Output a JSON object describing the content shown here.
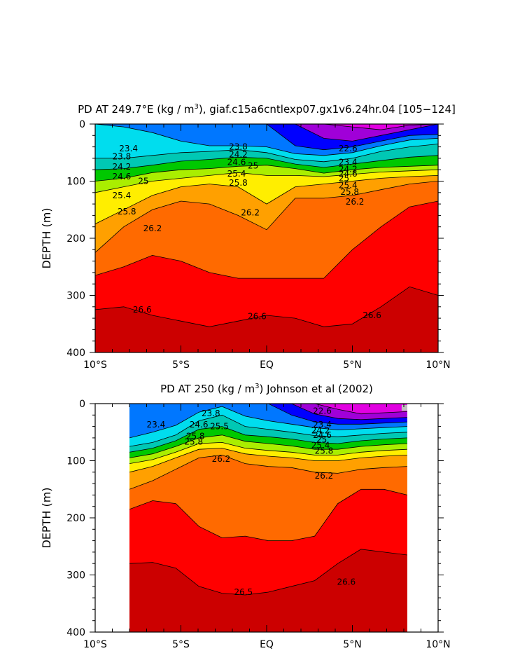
{
  "chart_data": [
    {
      "type": "contour",
      "title": "PD AT 249.7°E (kg / m³), giaf.c15a6cntlexp07.gx1v6.24hr.04 [105-124]",
      "title_parts": {
        "pre": "PD AT 249.7°E (kg / m",
        "sup": "3",
        "post": "), giaf.c15a6cntlexp07.gx1v6.24hr.04 [105−124]"
      },
      "ylabel": "DEPTH (m)",
      "xlabel": "",
      "xlim": [
        -10,
        10
      ],
      "ylim": [
        0,
        400
      ],
      "data_xlim": [
        -10,
        10
      ],
      "x_ticks": [
        -10,
        -5,
        0,
        5,
        10
      ],
      "x_tick_labels": [
        "10°S",
        "5°S",
        "EQ",
        "5°N",
        "10°N"
      ],
      "y_ticks": [
        0,
        100,
        200,
        300,
        400
      ],
      "y_tick_labels": [
        "0",
        "100",
        "200",
        "300",
        "400"
      ],
      "colors": {
        "l22": "#e100e1",
        "l22_6": "#a000d8",
        "l23": "#0000ff",
        "l23_4": "#0077ff",
        "l23_8": "#00ddee",
        "l24_2": "#00c8b4",
        "l24_6": "#00c800",
        "l25": "#aaee00",
        "l25_4": "#ffee00",
        "l25_8": "#ffa000",
        "l26_2": "#ff6a00",
        "l26_6": "#ff0000",
        "deep": "#cc0000",
        "surface": "#00f0ff"
      },
      "contours": [
        {
          "level": 26.6,
          "depths": [
            325,
            320,
            335,
            345,
            355,
            345,
            335,
            340,
            355,
            350,
            320,
            285,
            300
          ]
        },
        {
          "level": 26.2,
          "depths": [
            265,
            250,
            230,
            240,
            260,
            270,
            270,
            270,
            270,
            220,
            180,
            145,
            135
          ]
        },
        {
          "level": 25.8,
          "depths": [
            225,
            180,
            150,
            135,
            140,
            160,
            185,
            130,
            130,
            125,
            115,
            105,
            100
          ]
        },
        {
          "level": 25.4,
          "depths": [
            175,
            150,
            125,
            110,
            105,
            110,
            140,
            110,
            105,
            100,
            95,
            92,
            90
          ]
        },
        {
          "level": 25.0,
          "depths": [
            120,
            110,
            100,
            95,
            90,
            85,
            90,
            90,
            92,
            88,
            84,
            82,
            80
          ]
        },
        {
          "level": 24.6,
          "depths": [
            100,
            95,
            85,
            80,
            78,
            74,
            72,
            78,
            86,
            80,
            76,
            74,
            72
          ]
        },
        {
          "level": 24.2,
          "depths": [
            80,
            78,
            72,
            65,
            62,
            58,
            60,
            70,
            76,
            70,
            64,
            58,
            55
          ]
        },
        {
          "level": 23.8,
          "depths": [
            60,
            60,
            55,
            50,
            48,
            45,
            50,
            62,
            66,
            60,
            48,
            40,
            35
          ]
        },
        {
          "level": 23.4,
          "depths": [
            0,
            5,
            15,
            30,
            38,
            38,
            40,
            52,
            55,
            50,
            38,
            28,
            25
          ]
        },
        {
          "level": 23.0,
          "depths": [
            0,
            0,
            0,
            0,
            0,
            0,
            0,
            38,
            45,
            40,
            30,
            20,
            18
          ]
        },
        {
          "level": 22.6,
          "depths": [
            0,
            0,
            0,
            0,
            0,
            0,
            0,
            0,
            25,
            30,
            20,
            10,
            0
          ]
        },
        {
          "level": 22.2,
          "depths": [
            0,
            0,
            0,
            0,
            0,
            0,
            0,
            0,
            0,
            5,
            10,
            2,
            0
          ]
        }
      ],
      "contour_labels": [
        {
          "text": "23.4",
          "x": -8.6,
          "y": 48
        },
        {
          "text": "23.8",
          "x": -9.0,
          "y": 62
        },
        {
          "text": "24.2",
          "x": -9.0,
          "y": 80
        },
        {
          "text": "24.6",
          "x": -9.0,
          "y": 97
        },
        {
          "text": "25",
          "x": -7.5,
          "y": 105
        },
        {
          "text": "25.4",
          "x": -9.0,
          "y": 130
        },
        {
          "text": "25.8",
          "x": -8.7,
          "y": 158
        },
        {
          "text": "26.2",
          "x": -7.2,
          "y": 188
        },
        {
          "text": "23.8",
          "x": -2.2,
          "y": 45
        },
        {
          "text": "24.2",
          "x": -2.2,
          "y": 58
        },
        {
          "text": "24.6",
          "x": -2.3,
          "y": 72
        },
        {
          "text": "25",
          "x": -1.1,
          "y": 78
        },
        {
          "text": "25.4",
          "x": -2.3,
          "y": 92
        },
        {
          "text": "25.8",
          "x": -2.2,
          "y": 108
        },
        {
          "text": "26.2",
          "x": -1.5,
          "y": 160
        },
        {
          "text": "22.6",
          "x": 4.2,
          "y": 48
        },
        {
          "text": "23.4",
          "x": 4.2,
          "y": 72
        },
        {
          "text": "24.2",
          "x": 4.2,
          "y": 84
        },
        {
          "text": "24.6",
          "x": 4.2,
          "y": 92
        },
        {
          "text": "25",
          "x": 4.2,
          "y": 100
        },
        {
          "text": "25.4",
          "x": 4.2,
          "y": 112
        },
        {
          "text": "25.8",
          "x": 4.3,
          "y": 124
        },
        {
          "text": "26.2",
          "x": 4.6,
          "y": 141
        },
        {
          "text": "26.6",
          "x": -7.8,
          "y": 330
        },
        {
          "text": "26.6",
          "x": -1.1,
          "y": 342
        },
        {
          "text": "26.6",
          "x": 5.6,
          "y": 340
        }
      ]
    },
    {
      "type": "contour",
      "title": "PD AT 250 (kg / m³) Johnson et al (2002)",
      "title_parts": {
        "pre": "PD AT 250 (kg / m",
        "sup": "3",
        "post": ") Johnson et al (2002)"
      },
      "ylabel": "DEPTH (m)",
      "xlabel": "",
      "xlim": [
        -10,
        10
      ],
      "ylim": [
        0,
        400
      ],
      "data_xlim": [
        -8,
        8.2
      ],
      "x_ticks": [
        -10,
        -5,
        0,
        5,
        10
      ],
      "x_tick_labels": [
        "10°S",
        "5°S",
        "EQ",
        "5°N",
        "10°N"
      ],
      "y_ticks": [
        0,
        100,
        200,
        300,
        400
      ],
      "y_tick_labels": [
        "0",
        "100",
        "200",
        "300",
        "400"
      ],
      "colors": {
        "l22": "#e100e1",
        "l22_6": "#a000d8",
        "l23": "#0000ff",
        "l23_4": "#0077ff",
        "l23_8": "#00ddee",
        "l24_2": "#00c8b4",
        "l24_6": "#00c800",
        "l25": "#aaee00",
        "l25_4": "#ffee00",
        "l25_8": "#ffa000",
        "l26_2": "#ff6a00",
        "l26_6": "#ff0000",
        "deep": "#cc0000",
        "surface": "#00f0ff",
        "missing": "#c0c0c0"
      },
      "contours": [
        {
          "level": 26.6,
          "depths": [
            280,
            278,
            288,
            320,
            332,
            335,
            330,
            320,
            310,
            280,
            255,
            260,
            265
          ]
        },
        {
          "level": 26.2,
          "depths": [
            185,
            170,
            175,
            215,
            235,
            232,
            240,
            240,
            232,
            175,
            150,
            150,
            160
          ]
        },
        {
          "level": 25.8,
          "depths": [
            150,
            135,
            115,
            95,
            90,
            105,
            110,
            112,
            120,
            122,
            115,
            112,
            110
          ]
        },
        {
          "level": 25.4,
          "depths": [
            120,
            110,
            95,
            80,
            78,
            88,
            92,
            95,
            100,
            100,
            95,
            92,
            90
          ]
        },
        {
          "level": 25.0,
          "depths": [
            105,
            98,
            85,
            70,
            68,
            78,
            82,
            85,
            90,
            90,
            85,
            82,
            80
          ]
        },
        {
          "level": 24.6,
          "depths": [
            95,
            88,
            75,
            60,
            55,
            66,
            70,
            74,
            80,
            80,
            75,
            72,
            70
          ]
        },
        {
          "level": 24.2,
          "depths": [
            85,
            78,
            65,
            45,
            40,
            55,
            58,
            62,
            68,
            70,
            65,
            62,
            60
          ]
        },
        {
          "level": 23.8,
          "depths": [
            75,
            68,
            55,
            30,
            20,
            40,
            45,
            50,
            56,
            58,
            55,
            52,
            50
          ]
        },
        {
          "level": 23.4,
          "depths": [
            60,
            50,
            38,
            15,
            5,
            22,
            30,
            36,
            42,
            46,
            44,
            42,
            40
          ]
        },
        {
          "level": 23.0,
          "depths": [
            0,
            0,
            0,
            0,
            0,
            0,
            0,
            20,
            32,
            36,
            36,
            34,
            32
          ]
        },
        {
          "level": 22.6,
          "depths": [
            0,
            0,
            0,
            0,
            0,
            0,
            0,
            0,
            18,
            26,
            28,
            26,
            24
          ]
        },
        {
          "level": 22.2,
          "depths": [
            0,
            0,
            0,
            0,
            0,
            0,
            0,
            0,
            0,
            10,
            18,
            16,
            14
          ]
        }
      ],
      "contour_labels": [
        {
          "text": "23.4",
          "x": -7.0,
          "y": 42
        },
        {
          "text": "23.8",
          "x": -3.8,
          "y": 22
        },
        {
          "text": "24.6",
          "x": -4.5,
          "y": 42
        },
        {
          "text": "25.8",
          "x": -4.7,
          "y": 62
        },
        {
          "text": "25.5",
          "x": -3.3,
          "y": 45
        },
        {
          "text": "25.8",
          "x": -4.8,
          "y": 72
        },
        {
          "text": "26.2",
          "x": -3.2,
          "y": 102
        },
        {
          "text": "22.6",
          "x": 2.7,
          "y": 18
        },
        {
          "text": "23.4",
          "x": 2.7,
          "y": 42
        },
        {
          "text": "24.2",
          "x": 2.6,
          "y": 52
        },
        {
          "text": "24.6",
          "x": 2.7,
          "y": 60
        },
        {
          "text": "25",
          "x": 2.9,
          "y": 68
        },
        {
          "text": "25.4",
          "x": 2.6,
          "y": 78
        },
        {
          "text": "25.8",
          "x": 2.8,
          "y": 88
        },
        {
          "text": "26.2",
          "x": 2.8,
          "y": 131
        },
        {
          "text": "26.5",
          "x": -1.9,
          "y": 335
        },
        {
          "text": "26.6",
          "x": 4.1,
          "y": 317
        }
      ]
    }
  ]
}
